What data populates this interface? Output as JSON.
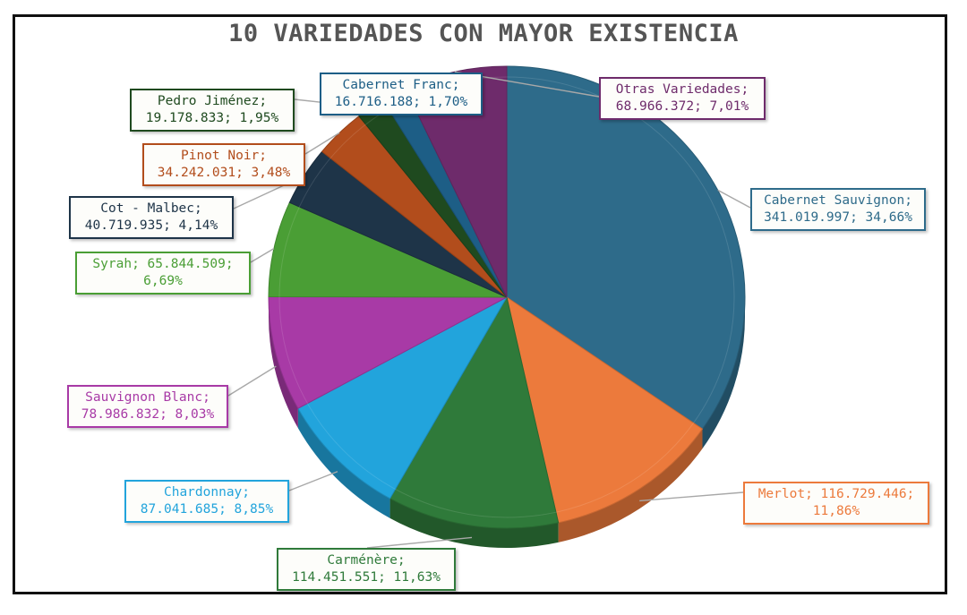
{
  "chart_data": {
    "type": "pie",
    "title": "10 VARIEDADES CON MAYOR EXISTENCIA",
    "slices": [
      {
        "name": "Cabernet Sauvignon",
        "value": 341019997,
        "percent": 34.66,
        "label": "Cabernet Sauvignon; 341.019.997; 34,66%",
        "color": "#2e6b8a"
      },
      {
        "name": "Merlot",
        "value": 116729446,
        "percent": 11.86,
        "label": "Merlot; 116.729.446; 11,86%",
        "color": "#ec7a3c"
      },
      {
        "name": "Carménère",
        "value": 114451551,
        "percent": 11.63,
        "label": "Carménère; 114.451.551; 11,63%",
        "color": "#2f7a3a"
      },
      {
        "name": "Chardonnay",
        "value": 87041685,
        "percent": 8.85,
        "label": "Chardonnay; 87.041.685; 8,85%",
        "color": "#22a4dc"
      },
      {
        "name": "Sauvignon Blanc",
        "value": 78986832,
        "percent": 8.03,
        "label": "Sauvignon Blanc; 78.986.832; 8,03%",
        "color": "#a83aa6"
      },
      {
        "name": "Syrah",
        "value": 65844509,
        "percent": 6.69,
        "label": "Syrah; 65.844.509; 6,69%",
        "color": "#4a9e35"
      },
      {
        "name": "Cot - Malbec",
        "value": 40719935,
        "percent": 4.14,
        "label": "Cot - Malbec; 40.719.935; 4,14%",
        "color": "#1e3448"
      },
      {
        "name": "Pinot Noir",
        "value": 34242031,
        "percent": 3.48,
        "label": "Pinot Noir; 34.242.031; 3,48%",
        "color": "#b24d1c"
      },
      {
        "name": "Pedro Jiménez",
        "value": 19178833,
        "percent": 1.95,
        "label": "Pedro Jiménez; 19.178.833; 1,95%",
        "color": "#1f4a1f"
      },
      {
        "name": "Cabernet Franc",
        "value": 16716188,
        "percent": 1.7,
        "label": "Cabernet Franc; 16.716.188; 1,70%",
        "color": "#1d5e86"
      },
      {
        "name": "Otras Variedades",
        "value": 68966372,
        "percent": 7.01,
        "label": "Otras Variedades; 68.966.372; 7,01%",
        "color": "#6e2b6b"
      }
    ],
    "legend": "none"
  }
}
